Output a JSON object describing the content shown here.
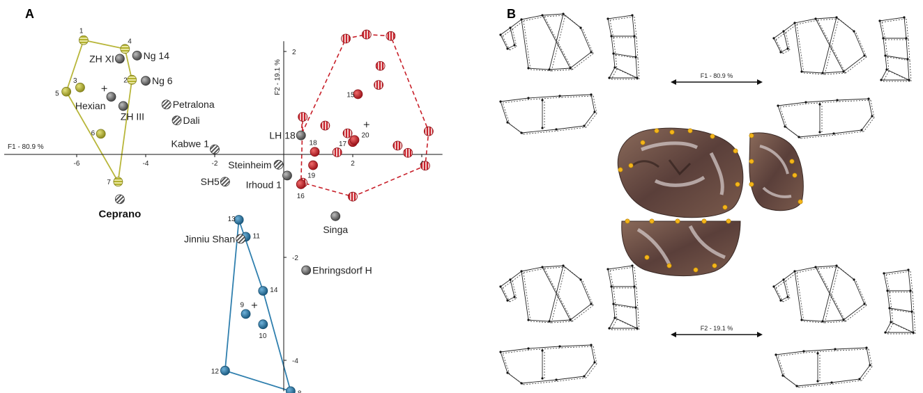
{
  "panels": {
    "a": "A",
    "b": "B"
  },
  "chart_data": {
    "type": "scatter",
    "axes": {
      "x": {
        "label": "F1 - 80.9 %",
        "ticks": [
          -6,
          -4,
          -2,
          2,
          4
        ],
        "range": [
          -8.1,
          4.6
        ]
      },
      "y": {
        "label": "F2 - 19.1 %",
        "ticks": [
          -4,
          -2,
          2
        ],
        "range": [
          -4.6,
          2.2
        ]
      }
    },
    "groups": [
      {
        "id": "yellow",
        "color": "#b8b63a",
        "hull_style": "solid",
        "hull_order": [
          "1",
          "4",
          "2",
          "7",
          "5"
        ],
        "centroid": [
          -5.2,
          1.28
        ],
        "points": [
          {
            "label": "1",
            "x": -5.8,
            "y": 2.22,
            "style": "striped"
          },
          {
            "label": "4",
            "x": -4.6,
            "y": 2.05,
            "style": "striped"
          },
          {
            "label": "2",
            "x": -4.4,
            "y": 1.45,
            "style": "striped"
          },
          {
            "label": "3",
            "x": -5.9,
            "y": 1.3,
            "style": "solid"
          },
          {
            "label": "5",
            "x": -6.3,
            "y": 1.22,
            "style": "solid"
          },
          {
            "label": "6",
            "x": -5.3,
            "y": 0.4,
            "style": "solid"
          },
          {
            "label": "7",
            "x": -4.8,
            "y": -0.53,
            "style": "striped"
          }
        ]
      },
      {
        "id": "red",
        "color": "#c8202a",
        "hull_style": "dashed",
        "hull_order": [
          "a1",
          "a2",
          "a3",
          "a4",
          "a5",
          "a6",
          "a7",
          "16",
          "a8",
          "LH18"
        ],
        "centroid": [
          2.4,
          0.58
        ],
        "points": [
          {
            "label": "",
            "key": "a1",
            "x": 1.8,
            "y": 2.25,
            "style": "striped"
          },
          {
            "label": "",
            "key": "a2",
            "x": 2.4,
            "y": 2.33,
            "style": "striped"
          },
          {
            "label": "",
            "key": "a3",
            "x": 3.1,
            "y": 2.3,
            "style": "striped"
          },
          {
            "label": "",
            "key": "a4",
            "x": 4.2,
            "y": 0.45,
            "style": "striped"
          },
          {
            "label": "",
            "key": "a5",
            "x": 4.1,
            "y": -0.22,
            "style": "striped"
          },
          {
            "label": "",
            "key": "a6",
            "x": 2.0,
            "y": -0.82,
            "style": "striped"
          },
          {
            "label": "",
            "key": "a7",
            "x": 0.55,
            "y": -0.55,
            "style": "striped"
          },
          {
            "label": "",
            "key": "a8",
            "x": 0.55,
            "y": 0.73,
            "style": "striped"
          },
          {
            "label": "",
            "x": 2.8,
            "y": 1.72,
            "style": "striped"
          },
          {
            "label": "",
            "x": 2.75,
            "y": 1.35,
            "style": "striped"
          },
          {
            "label": "",
            "x": 1.2,
            "y": 0.56,
            "style": "striped"
          },
          {
            "label": "",
            "x": 1.85,
            "y": 0.41,
            "style": "striped"
          },
          {
            "label": "",
            "x": 3.3,
            "y": 0.17,
            "style": "striped"
          },
          {
            "label": "",
            "x": 1.55,
            "y": 0.04,
            "style": "striped"
          },
          {
            "label": "",
            "x": 3.6,
            "y": 0.03,
            "style": "striped"
          },
          {
            "label": "15",
            "x": 2.15,
            "y": 1.17,
            "style": "solid"
          },
          {
            "label": "17",
            "x": 2.0,
            "y": 0.24,
            "style": "solid"
          },
          {
            "label": "18",
            "x": 0.9,
            "y": 0.05,
            "style": "solid"
          },
          {
            "label": "19",
            "x": 0.85,
            "y": -0.21,
            "style": "solid"
          },
          {
            "label": "16",
            "x": 0.5,
            "y": -0.58,
            "style": "solid"
          },
          {
            "label": "20",
            "x": 2.05,
            "y": 0.28,
            "style": "solid"
          }
        ]
      },
      {
        "id": "blue",
        "color": "#2f7fae",
        "hull_style": "solid",
        "hull_order": [
          "13",
          "14",
          "8",
          "12"
        ],
        "centroid": [
          -0.85,
          -2.93
        ],
        "points": [
          {
            "label": "13",
            "x": -1.3,
            "y": -1.27,
            "style": "solid"
          },
          {
            "label": "11",
            "x": -1.1,
            "y": -1.6,
            "style": "solid"
          },
          {
            "label": "14",
            "x": -0.6,
            "y": -2.65,
            "style": "solid"
          },
          {
            "label": "9",
            "x": -1.1,
            "y": -3.1,
            "style": "solid"
          },
          {
            "label": "10",
            "x": -0.6,
            "y": -3.3,
            "style": "solid"
          },
          {
            "label": "12",
            "x": -1.7,
            "y": -4.2,
            "style": "solid"
          },
          {
            "label": "8",
            "x": 0.2,
            "y": -4.6,
            "style": "solid"
          }
        ]
      }
    ],
    "specimens": [
      {
        "label": "Ng 14",
        "x": -4.25,
        "y": 1.92,
        "style": "grey"
      },
      {
        "label": "ZH XI",
        "x": -4.75,
        "y": 1.86,
        "style": "grey"
      },
      {
        "label": "Ng 6",
        "x": -4.0,
        "y": 1.43,
        "style": "grey"
      },
      {
        "label": "Hexian",
        "x": -5.0,
        "y": 1.12,
        "style": "grey"
      },
      {
        "label": "ZH III",
        "x": -4.65,
        "y": 0.94,
        "style": "grey"
      },
      {
        "label": "Petralona",
        "x": -3.4,
        "y": 0.97,
        "style": "striped-grey"
      },
      {
        "label": "Dali",
        "x": -3.1,
        "y": 0.66,
        "style": "striped-grey"
      },
      {
        "label": "Kabwe 1",
        "x": -2.0,
        "y": 0.1,
        "style": "striped-grey"
      },
      {
        "label": "LH 18",
        "x": 0.5,
        "y": 0.37,
        "style": "grey"
      },
      {
        "label": "Steinheim",
        "x": -0.15,
        "y": -0.2,
        "style": "striped-grey"
      },
      {
        "label": "Irhoud 1",
        "x": 0.1,
        "y": -0.41,
        "style": "grey"
      },
      {
        "label": "SH5",
        "x": -1.7,
        "y": -0.53,
        "style": "striped-grey"
      },
      {
        "label": "Ceprano",
        "x": -4.75,
        "y": -0.87,
        "style": "striped-grey"
      },
      {
        "label": "Singa",
        "x": 1.5,
        "y": -1.2,
        "style": "grey"
      },
      {
        "label": "Jinniu Shan",
        "x": -1.25,
        "y": -1.64,
        "style": "striped-grey"
      },
      {
        "label": "Ehringsdorf H",
        "x": 0.65,
        "y": -2.25,
        "style": "grey"
      }
    ]
  },
  "panel_b": {
    "arrow_top_label": "F1 - 80.9 %",
    "arrow_bottom_label": "F2 - 19.1 %"
  }
}
